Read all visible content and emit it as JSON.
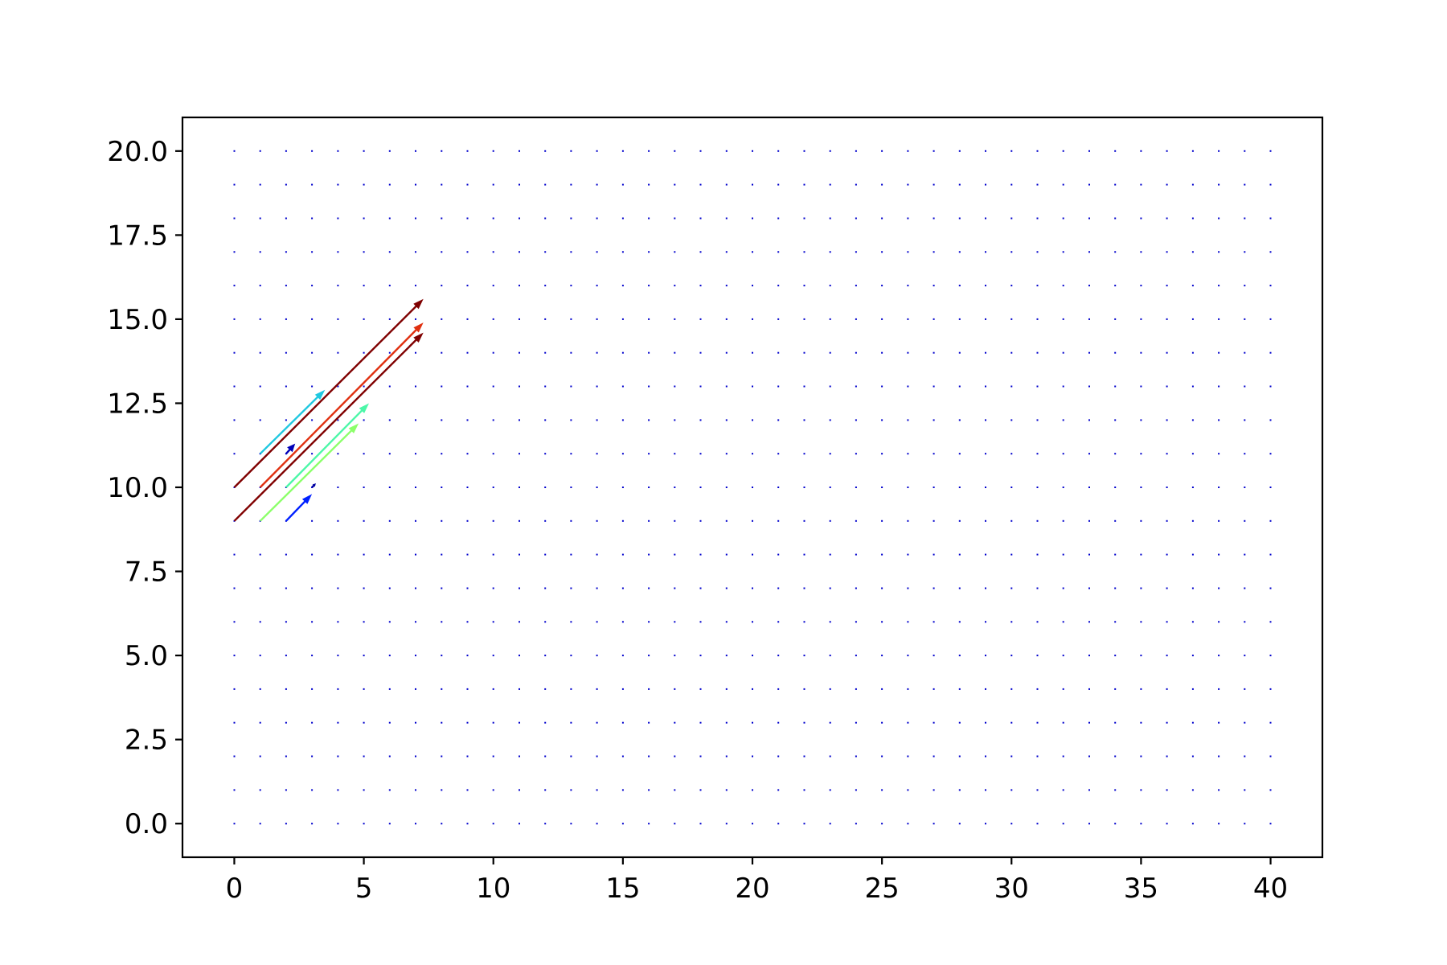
{
  "chart_data": {
    "type": "quiver",
    "title": "",
    "xlabel": "",
    "ylabel": "",
    "xlim": [
      -2,
      42
    ],
    "ylim": [
      -1,
      21
    ],
    "xticks": [
      0,
      5,
      10,
      15,
      20,
      25,
      30,
      35,
      40
    ],
    "xtick_labels": [
      "0",
      "5",
      "10",
      "15",
      "20",
      "25",
      "30",
      "35",
      "40"
    ],
    "yticks": [
      0,
      2.5,
      5,
      7.5,
      10,
      12.5,
      15,
      17.5,
      20
    ],
    "ytick_labels": [
      "0.0",
      "2.5",
      "5.0",
      "7.5",
      "10.0",
      "12.5",
      "15.0",
      "17.5",
      "20.0"
    ],
    "grid": {
      "x": [
        0,
        40,
        1
      ],
      "y": [
        0,
        20,
        1
      ],
      "dot_color": "#0000cc"
    },
    "colormap": "jet",
    "arrows": [
      {
        "x": 0,
        "y": 10,
        "u": 7.3,
        "v": 5.6,
        "color": "#7f0000"
      },
      {
        "x": 0,
        "y": 9,
        "u": 7.3,
        "v": 5.6,
        "color": "#800000"
      },
      {
        "x": 1,
        "y": 10,
        "u": 6.3,
        "v": 4.9,
        "color": "#e03010"
      },
      {
        "x": 1,
        "y": 11,
        "u": 2.5,
        "v": 1.9,
        "color": "#20c8e0"
      },
      {
        "x": 2,
        "y": 10,
        "u": 3.2,
        "v": 2.5,
        "color": "#4cf7a8"
      },
      {
        "x": 1,
        "y": 9,
        "u": 3.8,
        "v": 2.9,
        "color": "#8cff6a"
      },
      {
        "x": 2,
        "y": 9,
        "u": 1.0,
        "v": 0.8,
        "color": "#0020ff"
      },
      {
        "x": 2,
        "y": 11,
        "u": 0.35,
        "v": 0.3,
        "color": "#0000b8"
      },
      {
        "x": 3,
        "y": 10,
        "u": 0.15,
        "v": 0.12,
        "color": "#0000a0"
      }
    ]
  }
}
